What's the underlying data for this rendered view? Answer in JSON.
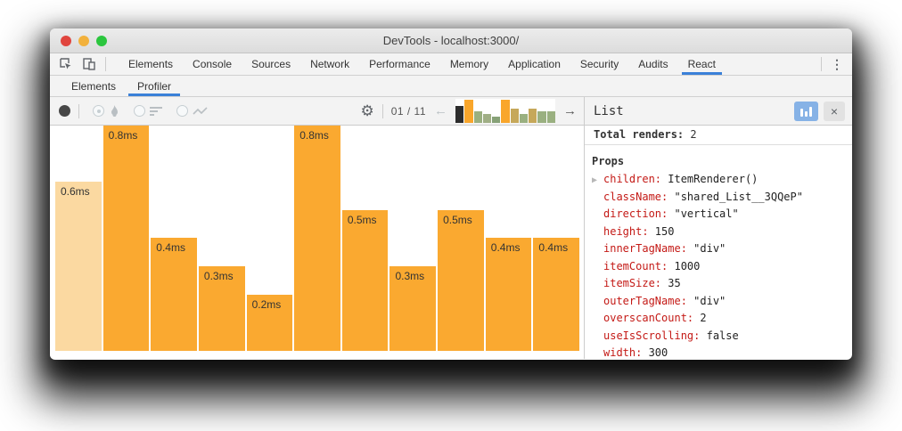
{
  "window": {
    "title": "DevTools - localhost:3000/"
  },
  "traffic_lights": {
    "close": "#e0453e",
    "minimize": "#f2b13c",
    "zoom": "#2bc63e"
  },
  "main_tabs": {
    "items": [
      "Elements",
      "Console",
      "Sources",
      "Network",
      "Performance",
      "Memory",
      "Application",
      "Security",
      "Audits",
      "React"
    ],
    "active": "React"
  },
  "sub_tabs": {
    "items": [
      "Elements",
      "Profiler"
    ],
    "active": "Profiler"
  },
  "toolbar": {
    "snapshot_counter": "01 / 11"
  },
  "icons": {
    "gear": "⚙",
    "kebab": "⋮",
    "left_arrow": "←",
    "right_arrow": "→",
    "close": "×",
    "caret_right": "▶"
  },
  "colors": {
    "accent_blue": "#3a80d8",
    "bar_orange": "#faa930",
    "bar_selected": "#fbd9a1",
    "prop_key_red": "#c41a16",
    "selected_snapshot_black": "#2d2d2d"
  },
  "chart_data": {
    "type": "bar",
    "title": "React Profiler commit durations for selected component (List)",
    "unit": "ms",
    "ylim": [
      0,
      0.8
    ],
    "values": [
      0.6,
      0.8,
      0.4,
      0.3,
      0.2,
      0.8,
      0.5,
      0.3,
      0.5,
      0.4,
      0.4
    ],
    "labels": [
      "0.6ms",
      "0.8ms",
      "0.4ms",
      "0.3ms",
      "0.2ms",
      "0.8ms",
      "0.5ms",
      "0.3ms",
      "0.5ms",
      "0.4ms",
      "0.4ms"
    ],
    "selected_index": 0,
    "bar_color": "#faa930",
    "selected_bar_color": "#fbd9a1",
    "snapshot_selector": {
      "values": [
        0.6,
        0.8,
        0.4,
        0.3,
        0.2,
        0.8,
        0.5,
        0.3,
        0.5,
        0.4,
        0.4
      ],
      "colors": [
        "#2d2d2d",
        "#f9a62b",
        "#9ab080",
        "#a0af85",
        "#87a177",
        "#f9a62b",
        "#c6a85a",
        "#9ab080",
        "#c6a85a",
        "#9ab080",
        "#9ab080"
      ]
    }
  },
  "details": {
    "title": "List",
    "total_renders_label": "Total renders:",
    "total_renders_value": "2",
    "props_heading": "Props",
    "props": [
      {
        "key": "children",
        "value": "ItemRenderer()",
        "expandable": true
      },
      {
        "key": "className",
        "value": "\"shared_List__3QQeP\"",
        "expandable": false
      },
      {
        "key": "direction",
        "value": "\"vertical\"",
        "expandable": false
      },
      {
        "key": "height",
        "value": "150",
        "expandable": false
      },
      {
        "key": "innerTagName",
        "value": "\"div\"",
        "expandable": false
      },
      {
        "key": "itemCount",
        "value": "1000",
        "expandable": false
      },
      {
        "key": "itemSize",
        "value": "35",
        "expandable": false
      },
      {
        "key": "outerTagName",
        "value": "\"div\"",
        "expandable": false
      },
      {
        "key": "overscanCount",
        "value": "2",
        "expandable": false
      },
      {
        "key": "useIsScrolling",
        "value": "false",
        "expandable": false
      },
      {
        "key": "width",
        "value": "300",
        "expandable": false
      }
    ]
  }
}
